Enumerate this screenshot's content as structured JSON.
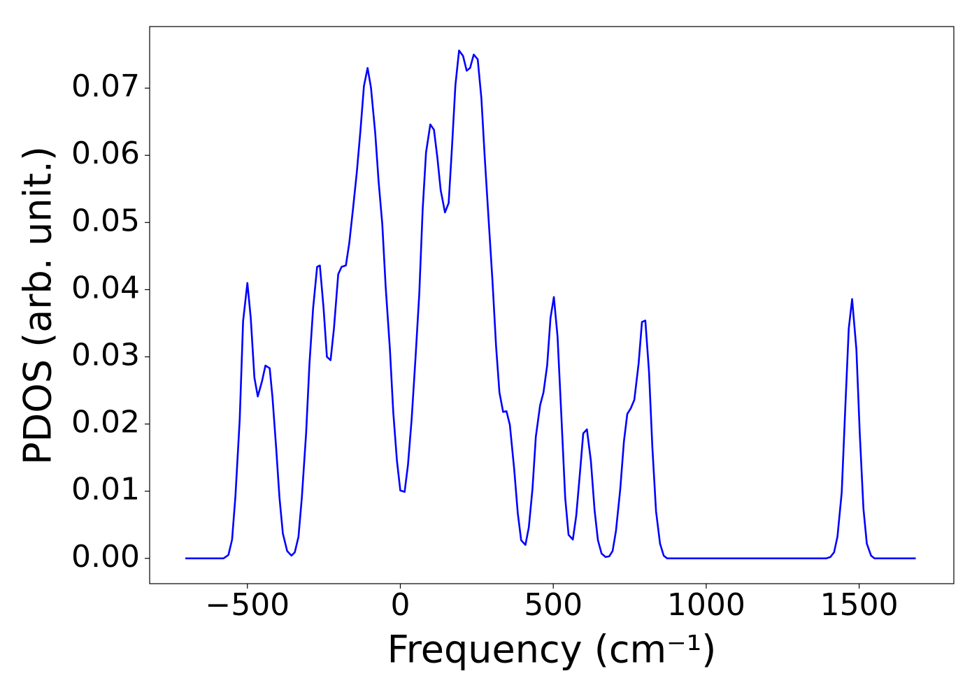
{
  "chart_data": {
    "type": "line",
    "xlabel": "Frequency (cm⁻¹)",
    "ylabel": "PDOS (arb. unit.)",
    "color": "#0000ff",
    "x": [
      -703,
      -578,
      -562,
      -550,
      -539,
      -525,
      -514,
      -500,
      -489,
      -477,
      -466,
      -452,
      -441,
      -427,
      -418,
      -406,
      -395,
      -384,
      -370,
      -356,
      -345,
      -333,
      -322,
      -308,
      -297,
      -285,
      -272,
      -263,
      -251,
      -240,
      -228,
      -217,
      -203,
      -192,
      -178,
      -167,
      -155,
      -142,
      -130,
      -119,
      -107,
      -96,
      -82,
      -71,
      -59,
      -48,
      -34,
      -23,
      -11,
      0,
      14,
      25,
      37,
      50,
      62,
      73,
      84,
      98,
      110,
      121,
      132,
      146,
      158,
      169,
      180,
      192,
      205,
      217,
      228,
      240,
      253,
      265,
      276,
      288,
      301,
      313,
      324,
      336,
      347,
      358,
      372,
      384,
      395,
      409,
      420,
      432,
      443,
      457,
      468,
      480,
      491,
      502,
      514,
      527,
      539,
      550,
      564,
      575,
      587,
      598,
      610,
      623,
      635,
      646,
      658,
      671,
      683,
      694,
      705,
      719,
      731,
      742,
      753,
      765,
      779,
      790,
      801,
      813,
      824,
      836,
      849,
      861,
      872,
      1393,
      1406,
      1418,
      1429,
      1443,
      1454,
      1466,
      1477,
      1491,
      1502,
      1514,
      1525,
      1539,
      1550,
      1685
    ],
    "values": [
      0,
      0,
      0.0005,
      0.0028,
      0.0093,
      0.0207,
      0.0353,
      0.041,
      0.0358,
      0.0269,
      0.0241,
      0.0264,
      0.0287,
      0.0283,
      0.024,
      0.0165,
      0.009,
      0.0037,
      0.0011,
      0.0004,
      0.0009,
      0.0032,
      0.009,
      0.0186,
      0.029,
      0.0373,
      0.0434,
      0.0436,
      0.0373,
      0.03,
      0.0295,
      0.0342,
      0.0423,
      0.0434,
      0.0436,
      0.0469,
      0.0519,
      0.0576,
      0.0639,
      0.0703,
      0.073,
      0.0701,
      0.0633,
      0.0561,
      0.0498,
      0.0405,
      0.0311,
      0.0217,
      0.0145,
      0.0101,
      0.0099,
      0.0139,
      0.0207,
      0.0301,
      0.0394,
      0.0519,
      0.0604,
      0.0646,
      0.0638,
      0.0597,
      0.0548,
      0.0515,
      0.0529,
      0.0613,
      0.0704,
      0.0756,
      0.0748,
      0.0726,
      0.073,
      0.075,
      0.0743,
      0.0685,
      0.0597,
      0.0509,
      0.0415,
      0.0316,
      0.0247,
      0.0218,
      0.0219,
      0.0199,
      0.0134,
      0.0067,
      0.0027,
      0.002,
      0.0046,
      0.0103,
      0.0181,
      0.0228,
      0.0247,
      0.0287,
      0.0358,
      0.0389,
      0.033,
      0.0207,
      0.009,
      0.0035,
      0.0028,
      0.0063,
      0.0126,
      0.0186,
      0.0192,
      0.0145,
      0.0072,
      0.0027,
      0.0007,
      0.0002,
      0.0003,
      0.0011,
      0.0041,
      0.0103,
      0.0174,
      0.0215,
      0.0223,
      0.0236,
      0.029,
      0.0352,
      0.0354,
      0.0278,
      0.0165,
      0.007,
      0.0022,
      0.0004,
      0,
      0,
      0.0002,
      0.0009,
      0.0032,
      0.0098,
      0.0217,
      0.0342,
      0.0386,
      0.0311,
      0.0186,
      0.0074,
      0.0022,
      0.0004,
      0,
      0
    ],
    "xlim": [
      -819.5,
      1809.5
    ],
    "ylim": [
      -0.00377,
      0.07917
    ],
    "xticks": [
      {
        "value": -500,
        "label": "−500"
      },
      0,
      500,
      1000,
      1500
    ],
    "yticks": [
      {
        "value": 0,
        "label": "0.00"
      },
      {
        "value": 0.01,
        "label": "0.01"
      },
      {
        "value": 0.02,
        "label": "0.02"
      },
      {
        "value": 0.03,
        "label": "0.03"
      },
      {
        "value": 0.04,
        "label": "0.04"
      },
      {
        "value": 0.05,
        "label": "0.05"
      },
      {
        "value": 0.06,
        "label": "0.06"
      },
      {
        "value": 0.07,
        "label": "0.07"
      }
    ],
    "grid": false
  }
}
